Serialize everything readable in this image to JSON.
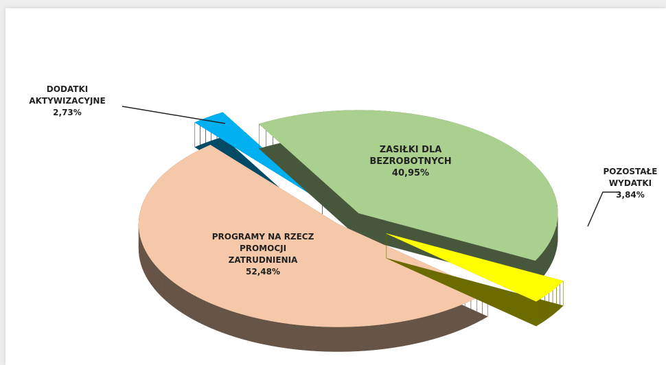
{
  "chart_data": {
    "type": "pie",
    "categories": [
      "ZASIŁKI DLA BEZROBOTNYCH",
      "POZOSTAŁE WYDATKI",
      "PROGRAMY NA RZECZ PROMOCJI ZATRUDNIENIA",
      "DODATKI AKTYWIZACYJNE"
    ],
    "values": [
      40.95,
      3.84,
      52.48,
      2.73
    ],
    "value_labels": [
      "40,95%",
      "3,84%",
      "52,48%",
      "2,73%"
    ],
    "colors": [
      "#a9d08e",
      "#ffff00",
      "#f4c8a8",
      "#00b0f0"
    ]
  }
}
